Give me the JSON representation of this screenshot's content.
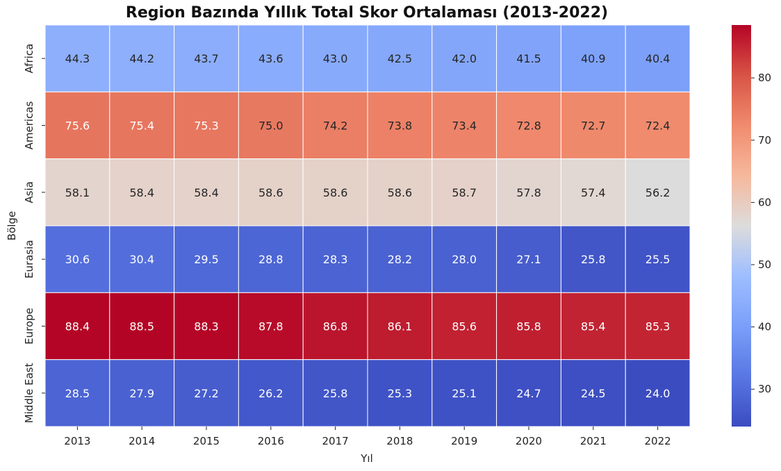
{
  "chart_data": {
    "type": "heatmap",
    "title": "Region Bazında Yıllık Total Skor Ortalaması (2013-2022)",
    "xlabel": "Yıl",
    "ylabel": "Bölge",
    "x": [
      "2013",
      "2014",
      "2015",
      "2016",
      "2017",
      "2018",
      "2019",
      "2020",
      "2021",
      "2022"
    ],
    "y": [
      "Africa",
      "Americas",
      "Asia",
      "Eurasia",
      "Europe",
      "Middle East"
    ],
    "values": [
      [
        44.3,
        44.2,
        43.7,
        43.6,
        43.0,
        42.5,
        42.0,
        41.5,
        40.9,
        40.4
      ],
      [
        75.6,
        75.4,
        75.3,
        75.0,
        74.2,
        73.8,
        73.4,
        72.8,
        72.7,
        72.4
      ],
      [
        58.1,
        58.4,
        58.4,
        58.6,
        58.6,
        58.6,
        58.7,
        57.8,
        57.4,
        56.2
      ],
      [
        30.6,
        30.4,
        29.5,
        28.8,
        28.3,
        28.2,
        28.0,
        27.1,
        25.8,
        25.5
      ],
      [
        88.4,
        88.5,
        88.3,
        87.8,
        86.8,
        86.1,
        85.6,
        85.8,
        85.4,
        85.3
      ],
      [
        28.5,
        27.9,
        27.2,
        26.2,
        25.8,
        25.3,
        25.1,
        24.7,
        24.5,
        24.0
      ]
    ],
    "colormap": "coolwarm",
    "vmin": 24.0,
    "vmax": 88.5,
    "colorbar_ticks": [
      30,
      40,
      50,
      60,
      70,
      80
    ],
    "cell_border_color": "#ffffff",
    "annotations": "values shown in each cell, one decimal"
  }
}
